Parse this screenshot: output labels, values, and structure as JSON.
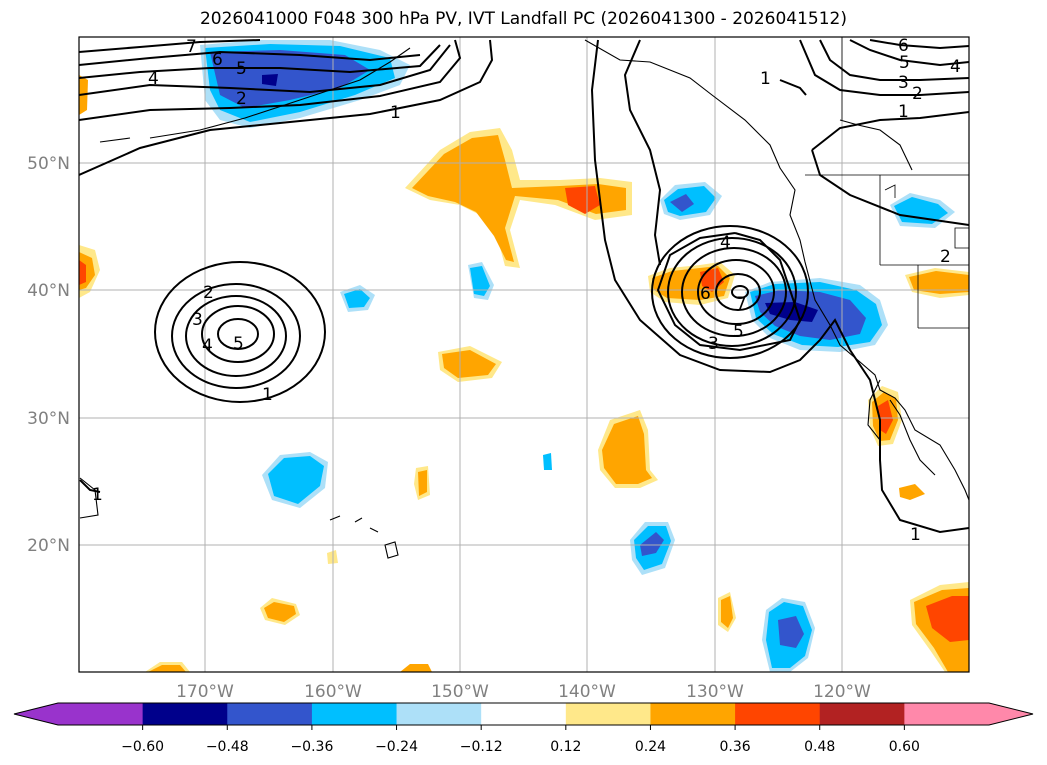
{
  "title": "2026041000 F048 300 hPa PV, IVT Landfall PC (2026041300 - 2026041512)",
  "map": {
    "lon_ticks": [
      "170°W",
      "160°W",
      "150°W",
      "140°W",
      "130°W",
      "120°W"
    ],
    "lat_ticks": [
      "50°N",
      "40°N",
      "30°N",
      "20°N"
    ]
  },
  "contours": {
    "labels": [
      "7",
      "6",
      "5",
      "4",
      "2",
      "1",
      "6",
      "5",
      "4",
      "3",
      "2",
      "1",
      "1",
      "2",
      "3",
      "4",
      "5",
      "1",
      "4",
      "6",
      "7",
      "5",
      "3",
      "1",
      "1",
      "2"
    ]
  },
  "colorbar": {
    "colors": [
      "#9933cc",
      "#00008b",
      "#3355cc",
      "#00bfff",
      "#ade0f8",
      "#ffffff",
      "#ffe88a",
      "#ffa500",
      "#ff4500",
      "#b22222",
      "#ff88aa"
    ],
    "ticks": [
      "−0.60",
      "−0.48",
      "−0.36",
      "−0.24",
      "−0.12",
      "0.12",
      "0.24",
      "0.36",
      "0.48",
      "0.60"
    ]
  }
}
